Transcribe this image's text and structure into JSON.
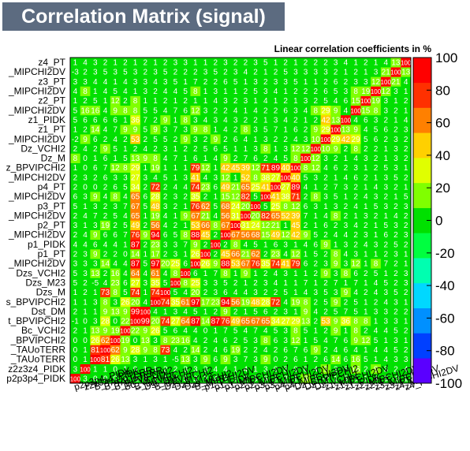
{
  "title": "Correlation Matrix (signal)",
  "chart_data": {
    "type": "heatmap",
    "subtitle": "Linear correlation coefficients in %",
    "variables": [
      "p2p3p4_PIDK",
      "z2z3z4_PIDK",
      "B_TAUoTERR",
      "B_TAUoTERR",
      "B_BPVIPCHI2",
      "Bc_VCHI2",
      "B_BPVIPCHI2",
      "Dst_DM",
      "B_BPVIPCHI2",
      "Dzs_M",
      "Dzs_M23",
      "Dzs_VCHI2",
      "B_MIPCHI2DV",
      "p1_PT",
      "p1_PIDK",
      "p1_MIPCHI2DV",
      "p2_PT",
      "p2_MIPCHI2DV",
      "p3_PT",
      "p3_MIPCHI2DV",
      "p4_PT",
      "p4_MIPCHI2DV",
      "Dz_BPVIPCHI2",
      "Dz_M",
      "Dz_VCHI2",
      "z1_MIPCHI2DV",
      "z1_PT",
      "z1_PIDK",
      "z2_MIPCHI2DV",
      "z2_PT",
      "z3_MIPCHI2DV",
      "z3_PT",
      "z4_MIPCHI2DV",
      "z4_PT"
    ],
    "y_labels": [
      "p2p3p4_PIDK",
      "z2z3z4_PIDK",
      "_TAUoTERR",
      "_TAUoTERR",
      "_BPVIPCHI2",
      "Bc_VCHI2",
      "t_BPVIPCHI2",
      "Dst_DM",
      "s_BPVIPCHI2",
      "Dzs_M",
      "Dzs_M23",
      "Dzs_VCHI2",
      "_MIPCHI2DV",
      "p1_PT",
      "p1_PIDK",
      "_MIPCHI2DV",
      "p2_PT",
      "_MIPCHI2DV",
      "p3_PT",
      "_MIPCHI2DV",
      "p4_PT",
      "_MIPCHI2DV",
      "z_BPVIPCHI2",
      "Dz_M",
      "Dz_VCHI2",
      "_MIPCHI2DV",
      "z1_PT",
      "z1_PIDK",
      "_MIPCHI2DV",
      "z2_PT",
      "_MIPCHI2DV",
      "z3_PT",
      "_MIPCHI2DV",
      "z4_PT"
    ],
    "x_labels": [
      "p2p3p4_PIDK",
      "z2z3z4_PIDK",
      "B_TAUoTERR",
      "B_TAUoTERR",
      "B_BPVIPCHI2",
      "Bc_VCHI2",
      "B_BPVIPCHI2",
      "Dst_DM",
      "B_BPVIPCHI2",
      "Dzs_M",
      "Dzs_M23",
      "Dzs_VCHI2",
      "B_MIPCHI2DV",
      "p1_PT",
      "p1_PIDK",
      "p1_MIPCHI2DV",
      "p2_PT",
      "p2_MIPCHI2DV",
      "p3_PT",
      "p3_MIPCHI2DV",
      "p4_PT",
      "p4_MIPCHI2DV",
      "Dz_BPVIPCHI2",
      "Dz_M",
      "Dz_VCHI2",
      "z1_MIPCHI2DV",
      "z1_PT",
      "z1_PIDK",
      "z2_MIPCHI2DV",
      "z2_PT",
      "z3_MIPCHI2DV",
      "z3_PT",
      "z4_MIPCHI2DV",
      "z4_PT"
    ],
    "zlim": [
      -100,
      100
    ],
    "colorbar_ticks": [
      100,
      80,
      60,
      40,
      20,
      0,
      -20,
      -40,
      -60,
      -80,
      -100
    ],
    "colorscale": [
      "#5a00ff",
      "#0040ff",
      "#0090ff",
      "#00d8ff",
      "#00ffb0",
      "#00ff40",
      "#00e000",
      "#80ff00",
      "#e0ff00",
      "#ffd000",
      "#ff8000",
      "#ff3000",
      "#ff0000"
    ],
    "values": [
      [
        100,
        3,
        0,
        0,
        0,
        2,
        -1,
        2,
        1,
        1,
        5,
        5,
        3,
        2,
        4,
        2,
        3,
        2,
        5,
        6,
        2,
        2,
        1,
        8,
        2,
        -2,
        1,
        5,
        5,
        1,
        4,
        3,
        -3,
        1
      ],
      [
        3,
        100,
        1,
        1,
        0,
        1,
        0,
        1,
        1,
        2,
        2,
        3,
        3,
        3,
        4,
        4,
        1,
        4,
        1,
        3,
        0,
        3,
        0,
        0,
        4,
        9,
        2,
        6,
        16,
        2,
        8,
        3,
        2,
        4
      ],
      [
        0,
        1,
        100,
        81,
        26,
        13,
        3,
        1,
        3,
        1,
        -5,
        13,
        3,
        9,
        6,
        9,
        3,
        7,
        3,
        9,
        0,
        2,
        6,
        1,
        2,
        6,
        14,
        6,
        16,
        5,
        1,
        4,
        3,
        3
      ],
      [
        0,
        1,
        81,
        100,
        62,
        9,
        28,
        9,
        8,
        73,
        4,
        2,
        14,
        2,
        4,
        6,
        19,
        2,
        2,
        4,
        2,
        6,
        7,
        6,
        9,
        2,
        4,
        6,
        4,
        1,
        4,
        4,
        5,
        2
      ],
      [
        0,
        0,
        26,
        62,
        100,
        19,
        0,
        13,
        3,
        8,
        23,
        16,
        4,
        2,
        4,
        6,
        2,
        5,
        3,
        8,
        6,
        3,
        12,
        1,
        5,
        4,
        7,
        6,
        9,
        12,
        5,
        1,
        3,
        1
      ],
      [
        2,
        1,
        13,
        9,
        19,
        100,
        22,
        9,
        26,
        5,
        6,
        4,
        4,
        0,
        1,
        7,
        5,
        4,
        7,
        4,
        5,
        3,
        8,
        5,
        1,
        2,
        9,
        1,
        8,
        2,
        4,
        4,
        5,
        2
      ],
      [
        -1,
        0,
        3,
        28,
        0,
        22,
        100,
        99,
        20,
        74,
        27,
        64,
        87,
        14,
        87,
        76,
        49,
        65,
        67,
        65,
        34,
        27,
        29,
        13,
        2,
        53,
        9,
        36,
        8,
        8,
        1,
        3,
        3,
        1
      ],
      [
        2,
        1,
        1,
        9,
        13,
        9,
        99,
        100,
        4,
        1,
        3,
        4,
        5,
        1,
        2,
        9,
        2,
        1,
        5,
        6,
        2,
        3,
        1,
        9,
        4,
        2,
        5,
        7,
        5,
        1,
        3,
        3,
        2,
        2
      ],
      [
        1,
        1,
        3,
        8,
        3,
        26,
        20,
        4,
        100,
        74,
        35,
        61,
        97,
        17,
        23,
        94,
        56,
        19,
        48,
        28,
        72,
        4,
        19,
        8,
        2,
        5,
        9,
        2,
        5,
        1,
        2,
        4,
        3,
        1
      ],
      [
        1,
        2,
        1,
        73,
        8,
        5,
        74,
        1,
        74,
        100,
        5,
        4,
        20,
        2,
        3,
        6,
        4,
        4,
        3,
        2,
        2,
        5,
        1,
        4,
        3,
        5,
        3,
        9,
        4,
        2,
        4,
        3,
        5,
        2
      ],
      [
        5,
        2,
        -5,
        4,
        23,
        6,
        27,
        3,
        35,
        5,
        100,
        8,
        25,
        3,
        3,
        5,
        2,
        1,
        2,
        3,
        4,
        1,
        1,
        7,
        1,
        2,
        7,
        1,
        7,
        1,
        4,
        5,
        2,
        3
      ],
      [
        5,
        3,
        13,
        2,
        16,
        4,
        64,
        4,
        61,
        4,
        8,
        100,
        6,
        1,
        7,
        8,
        1,
        9,
        1,
        2,
        4,
        3,
        1,
        1,
        2,
        9,
        3,
        8,
        6,
        2,
        5,
        1,
        2,
        3
      ],
      [
        3,
        3,
        3,
        14,
        4,
        4,
        87,
        5,
        97,
        20,
        25,
        6,
        100,
        26,
        9,
        88,
        53,
        67,
        76,
        35,
        74,
        41,
        79,
        6,
        2,
        3,
        9,
        3,
        12,
        1,
        8,
        7,
        2,
        1
      ],
      [
        2,
        3,
        9,
        2,
        2,
        0,
        14,
        1,
        17,
        2,
        3,
        1,
        26,
        100,
        2,
        45,
        66,
        21,
        62,
        2,
        23,
        4,
        12,
        1,
        5,
        2,
        8,
        4,
        3,
        1,
        1,
        2,
        3,
        1
      ],
      [
        4,
        4,
        6,
        4,
        4,
        1,
        87,
        2,
        23,
        3,
        3,
        7,
        9,
        2,
        100,
        2,
        8,
        4,
        5,
        1,
        6,
        3,
        1,
        4,
        6,
        9,
        1,
        3,
        2,
        4,
        3,
        2,
        5,
        2
      ],
      [
        2,
        4,
        9,
        6,
        6,
        7,
        76,
        9,
        94,
        6,
        5,
        8,
        88,
        45,
        2,
        100,
        67,
        56,
        68,
        15,
        49,
        12,
        42,
        9,
        5,
        2,
        4,
        4,
        2,
        3,
        1,
        6,
        2,
        3
      ],
      [
        3,
        1,
        3,
        19,
        2,
        5,
        49,
        2,
        56,
        4,
        2,
        1,
        53,
        66,
        8,
        67,
        100,
        31,
        24,
        12,
        21,
        1,
        45,
        2,
        1,
        6,
        2,
        3,
        4,
        2,
        1,
        5,
        3,
        2
      ],
      [
        2,
        4,
        7,
        2,
        5,
        4,
        65,
        1,
        19,
        4,
        1,
        9,
        67,
        21,
        4,
        56,
        31,
        100,
        20,
        82,
        65,
        52,
        39,
        7,
        1,
        4,
        8,
        2,
        1,
        3,
        2,
        1,
        4,
        2
      ],
      [
        5,
        1,
        3,
        2,
        3,
        7,
        67,
        5,
        48,
        3,
        2,
        1,
        76,
        62,
        5,
        68,
        24,
        20,
        100,
        5,
        25,
        8,
        12,
        6,
        3,
        1,
        3,
        2,
        4,
        1,
        5,
        3,
        2,
        3
      ],
      [
        6,
        3,
        9,
        4,
        8,
        4,
        65,
        6,
        28,
        2,
        3,
        2,
        35,
        2,
        1,
        15,
        12,
        82,
        5,
        100,
        41,
        38,
        71,
        2,
        8,
        3,
        5,
        1,
        2,
        4,
        3,
        2,
        1,
        5
      ],
      [
        2,
        0,
        0,
        2,
        6,
        5,
        34,
        2,
        72,
        2,
        4,
        4,
        74,
        23,
        6,
        49,
        21,
        65,
        25,
        41,
        100,
        27,
        89,
        4,
        1,
        2,
        7,
        3,
        2,
        1,
        4,
        3,
        2,
        1
      ],
      [
        2,
        3,
        2,
        6,
        3,
        3,
        27,
        3,
        4,
        5,
        1,
        3,
        41,
        4,
        3,
        12,
        1,
        52,
        8,
        38,
        27,
        100,
        40,
        5,
        3,
        2,
        1,
        4,
        6,
        2,
        1,
        3,
        5,
        2
      ],
      [
        1,
        0,
        6,
        7,
        12,
        8,
        29,
        1,
        19,
        1,
        1,
        1,
        79,
        12,
        1,
        42,
        45,
        39,
        12,
        71,
        89,
        40,
        100,
        8,
        12,
        4,
        6,
        2,
        3,
        1,
        2,
        5,
        3,
        1
      ],
      [
        8,
        0,
        1,
        6,
        1,
        5,
        13,
        9,
        8,
        4,
        7,
        1,
        6,
        1,
        4,
        9,
        2,
        7,
        6,
        2,
        4,
        5,
        8,
        100,
        12,
        3,
        2,
        1,
        4,
        3,
        2,
        1,
        3,
        2
      ],
      [
        2,
        4,
        2,
        9,
        5,
        1,
        2,
        4,
        2,
        3,
        1,
        2,
        2,
        5,
        6,
        5,
        1,
        1,
        3,
        8,
        1,
        3,
        12,
        12,
        100,
        10,
        9,
        2,
        8,
        2,
        2,
        1,
        3,
        2
      ],
      [
        -2,
        9,
        6,
        2,
        4,
        2,
        53,
        2,
        5,
        5,
        2,
        9,
        3,
        2,
        9,
        2,
        6,
        4,
        1,
        3,
        2,
        2,
        4,
        3,
        10,
        100,
        29,
        42,
        29,
        5,
        6,
        2,
        3,
        2
      ],
      [
        1,
        2,
        14,
        4,
        7,
        9,
        9,
        5,
        9,
        3,
        7,
        3,
        9,
        8,
        1,
        4,
        2,
        8,
        3,
        5,
        7,
        1,
        6,
        2,
        9,
        29,
        100,
        13,
        9,
        4,
        5,
        6,
        2,
        3
      ],
      [
        5,
        6,
        6,
        6,
        6,
        1,
        36,
        7,
        2,
        9,
        1,
        8,
        3,
        4,
        3,
        4,
        3,
        2,
        2,
        1,
        3,
        4,
        2,
        1,
        2,
        42,
        13,
        100,
        4,
        6,
        3,
        2,
        1,
        4
      ],
      [
        5,
        16,
        16,
        4,
        9,
        8,
        8,
        5,
        5,
        4,
        7,
        6,
        12,
        3,
        2,
        2,
        4,
        1,
        4,
        2,
        2,
        6,
        3,
        4,
        8,
        29,
        9,
        4,
        100,
        15,
        8,
        3,
        2,
        1
      ],
      [
        1,
        2,
        5,
        1,
        12,
        2,
        8,
        1,
        1,
        2,
        1,
        2,
        1,
        1,
        4,
        3,
        2,
        3,
        1,
        4,
        1,
        2,
        1,
        3,
        2,
        5,
        4,
        6,
        15,
        100,
        19,
        3,
        1,
        2
      ],
      [
        4,
        8,
        1,
        4,
        5,
        4,
        1,
        3,
        2,
        4,
        4,
        5,
        8,
        1,
        3,
        1,
        1,
        2,
        5,
        3,
        4,
        1,
        2,
        2,
        2,
        6,
        5,
        3,
        8,
        19,
        100,
        12,
        3,
        1
      ],
      [
        3,
        3,
        4,
        4,
        1,
        4,
        3,
        3,
        4,
        3,
        5,
        1,
        7,
        2,
        2,
        6,
        5,
        1,
        3,
        2,
        3,
        3,
        5,
        1,
        1,
        2,
        6,
        2,
        3,
        3,
        12,
        100,
        21,
        4
      ],
      [
        -3,
        2,
        3,
        5,
        3,
        5,
        3,
        2,
        3,
        5,
        2,
        2,
        2,
        3,
        5,
        2,
        3,
        4,
        2,
        1,
        2,
        5,
        3,
        3,
        3,
        3,
        2,
        1,
        2,
        1,
        3,
        21,
        100,
        13
      ],
      [
        1,
        4,
        3,
        2,
        1,
        2,
        1,
        2,
        1,
        2,
        3,
        3,
        1,
        1,
        2,
        3,
        2,
        2,
        3,
        5,
        1,
        2,
        1,
        2,
        2,
        2,
        3,
        4,
        1,
        2,
        1,
        4,
        13,
        100
      ]
    ]
  }
}
